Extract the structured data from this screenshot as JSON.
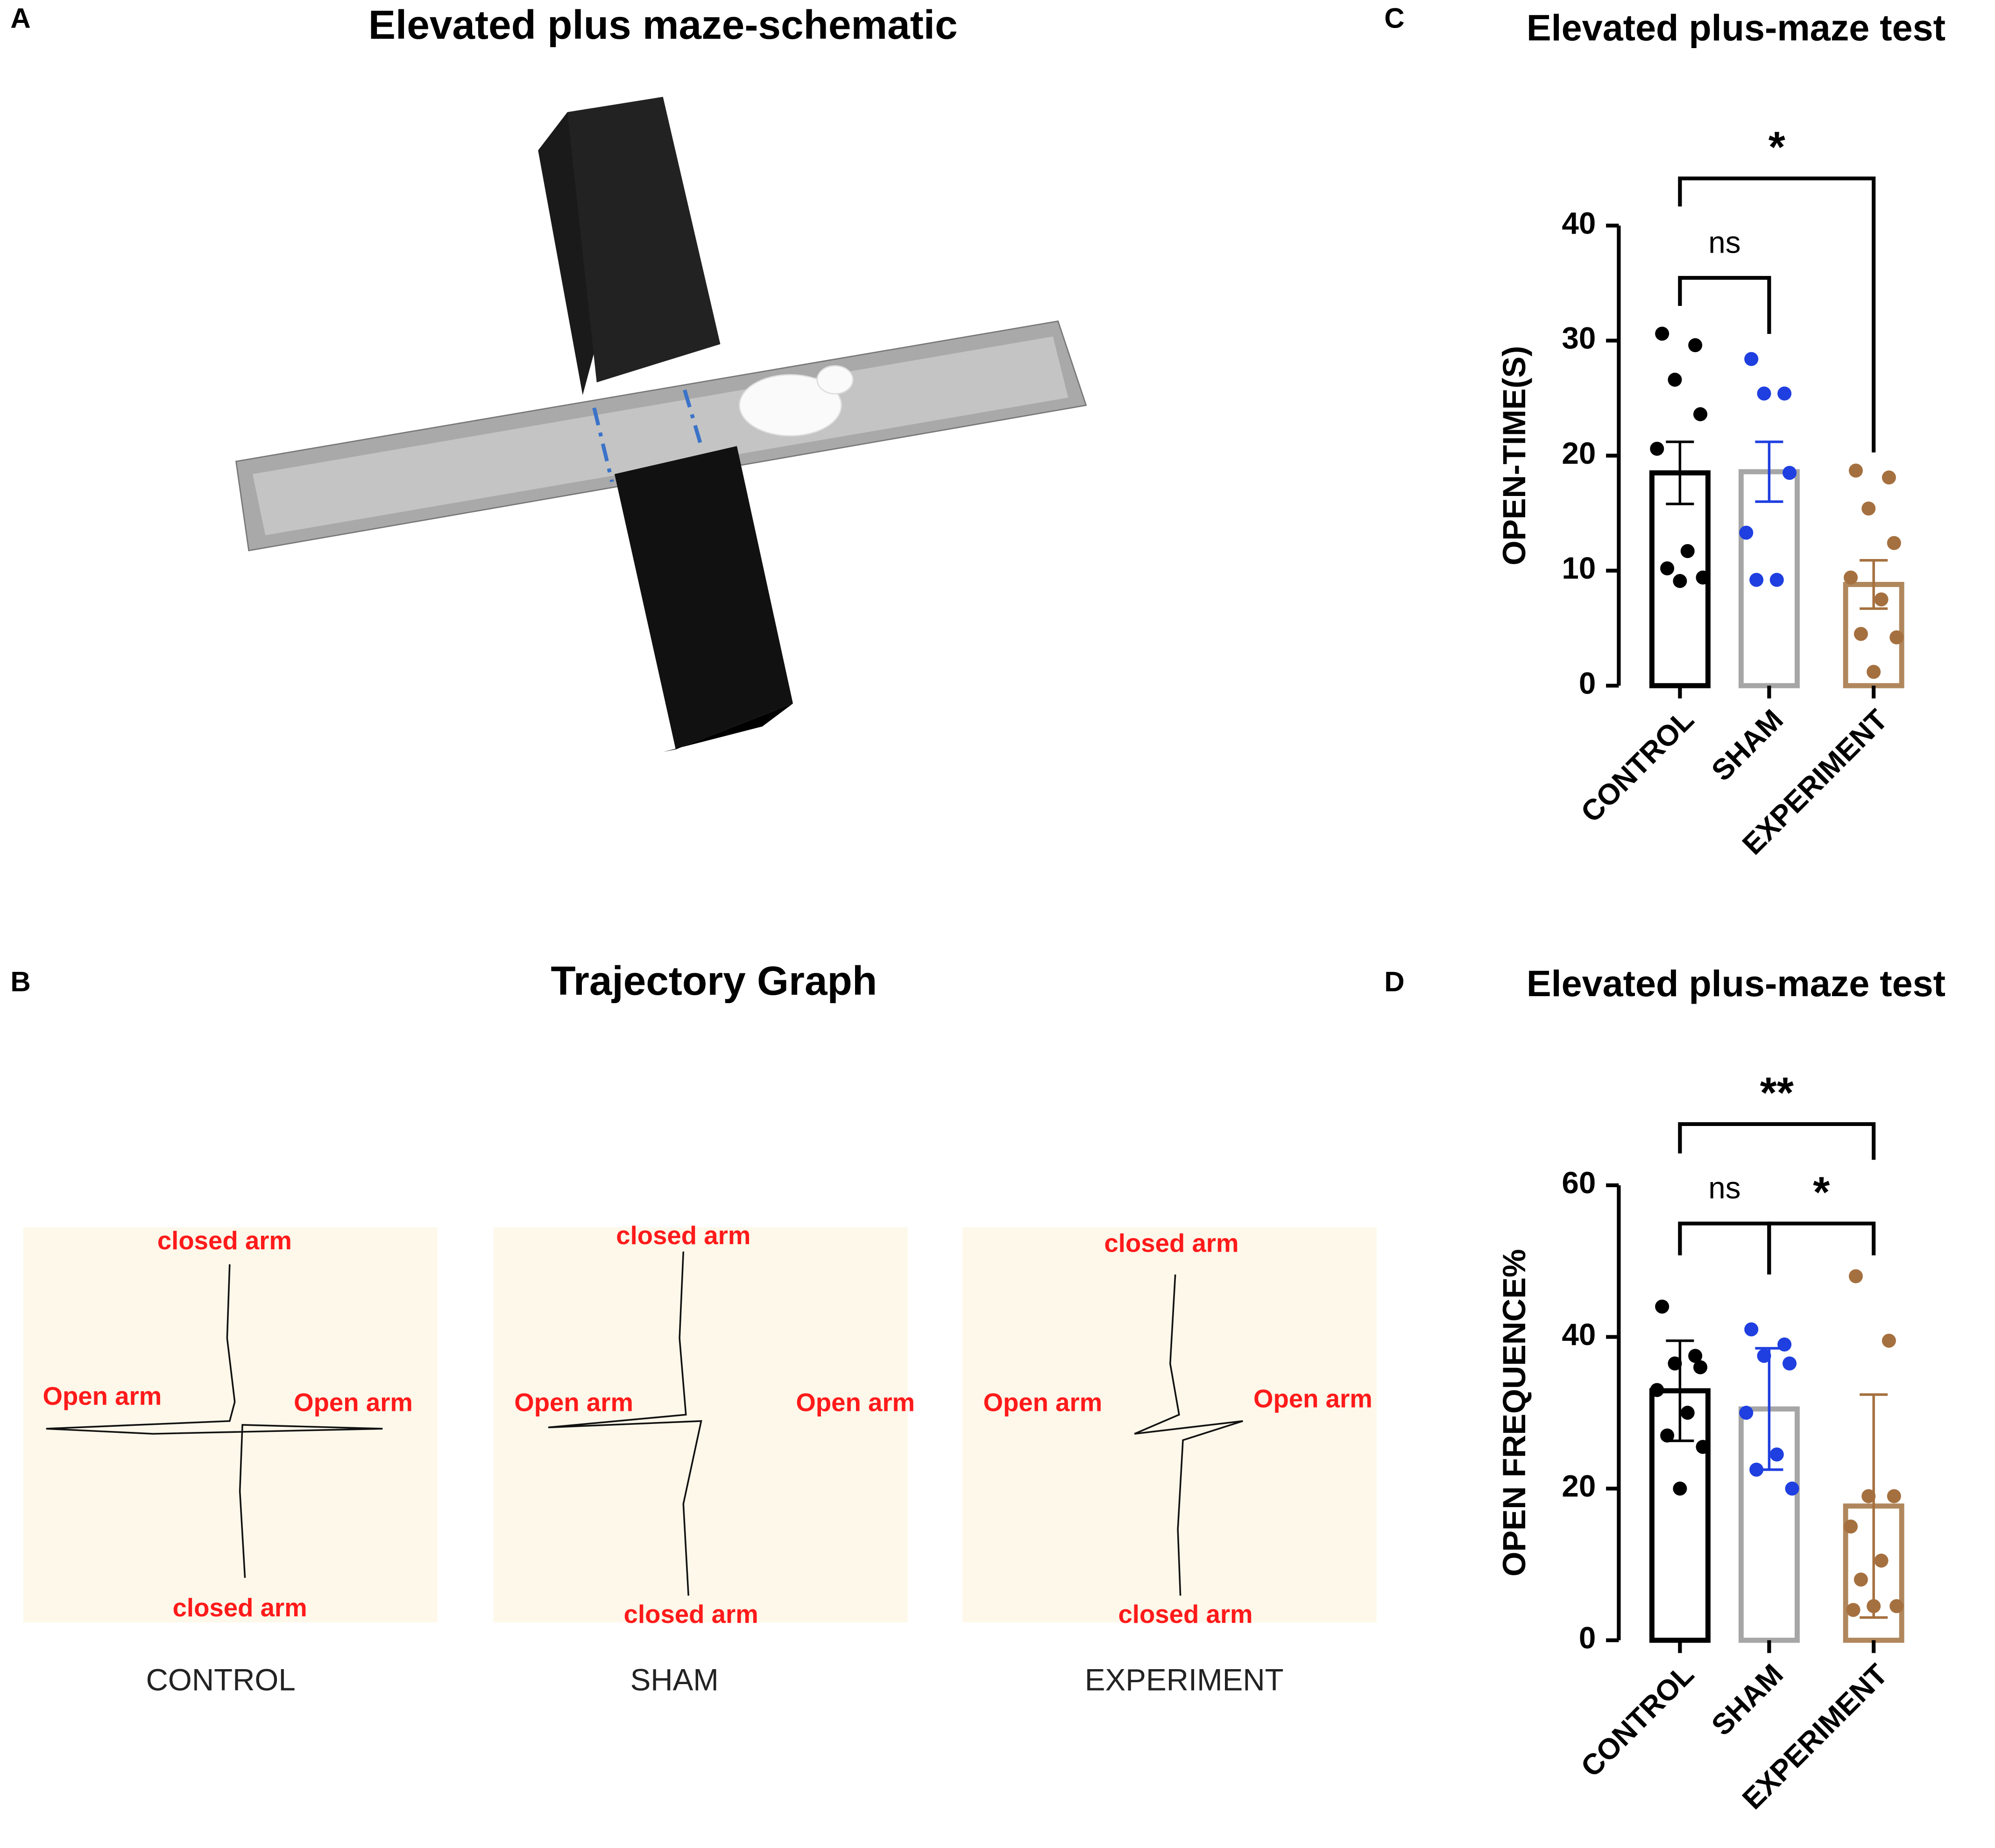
{
  "figure": {
    "panel_a": {
      "letter": "A",
      "title": "Elevated plus maze-schematic"
    },
    "panel_b": {
      "letter": "B",
      "title": "Trajectory Graph",
      "panels": [
        {
          "group": "CONTROL",
          "top": "closed arm",
          "bottom": "closed arm",
          "left": "Open arm",
          "right": "Open arm"
        },
        {
          "group": "SHAM",
          "top": "closed arm",
          "bottom": "closed arm",
          "left": "Open arm",
          "right": "Open arm"
        },
        {
          "group": "EXPERIMENT",
          "top": "closed arm",
          "bottom": "closed arm",
          "left": "Open arm",
          "right": "Open arm"
        }
      ]
    }
  },
  "chart_data": [
    {
      "type": "bar",
      "letter": "C",
      "title": "Elevated plus-maze test",
      "y_label": "OPEN-TIME(S)",
      "categories": [
        "CONTROL",
        "SHAM",
        "EXPERIMENT"
      ],
      "values": [
        18.5,
        18.6,
        8.8
      ],
      "errors": [
        2.7,
        2.6,
        2.1
      ],
      "points": [
        [
          30.6,
          29.6,
          26.6,
          23.6,
          20.6,
          11.7,
          10.2,
          9.4,
          9.1
        ],
        [
          28.4,
          25.4,
          25.4,
          18.5,
          13.3,
          9.2,
          9.2
        ],
        [
          18.7,
          18.1,
          15.4,
          12.4,
          9.4,
          7.5,
          4.5,
          4.2,
          1.2
        ]
      ],
      "bar_colors": [
        "#000000",
        "#a6a6a6",
        "#b0875c"
      ],
      "point_colors": [
        "#000000",
        "#1f3fe0",
        "#a5703f"
      ],
      "annotations": [
        "*",
        "ns"
      ],
      "ylim": [
        0,
        40
      ],
      "yticks": [
        0,
        10,
        20,
        30,
        40
      ]
    },
    {
      "type": "bar",
      "letter": "D",
      "title": "Elevated plus-maze test",
      "y_label": "OPEN FREQUENCE%",
      "categories": [
        "CONTROL",
        "SHAM",
        "EXPERIMENT"
      ],
      "values": [
        32.9,
        30.5,
        17.7
      ],
      "errors": [
        6.6,
        8.0,
        14.7
      ],
      "points": [
        [
          44,
          37.5,
          36.5,
          36,
          33,
          30,
          27,
          25.5,
          20
        ],
        [
          41,
          39,
          37.5,
          36.5,
          30,
          24.5,
          22.5,
          20
        ],
        [
          48,
          39.5,
          19,
          19,
          15,
          10.5,
          8,
          4.5,
          4.5,
          4
        ]
      ],
      "bar_colors": [
        "#000000",
        "#a6a6a6",
        "#b0875c"
      ],
      "point_colors": [
        "#000000",
        "#1f3fe0",
        "#a5703f"
      ],
      "annotations": [
        "**",
        "ns",
        "*"
      ],
      "ylim": [
        0,
        60
      ],
      "yticks": [
        0,
        20,
        40,
        60
      ]
    }
  ]
}
